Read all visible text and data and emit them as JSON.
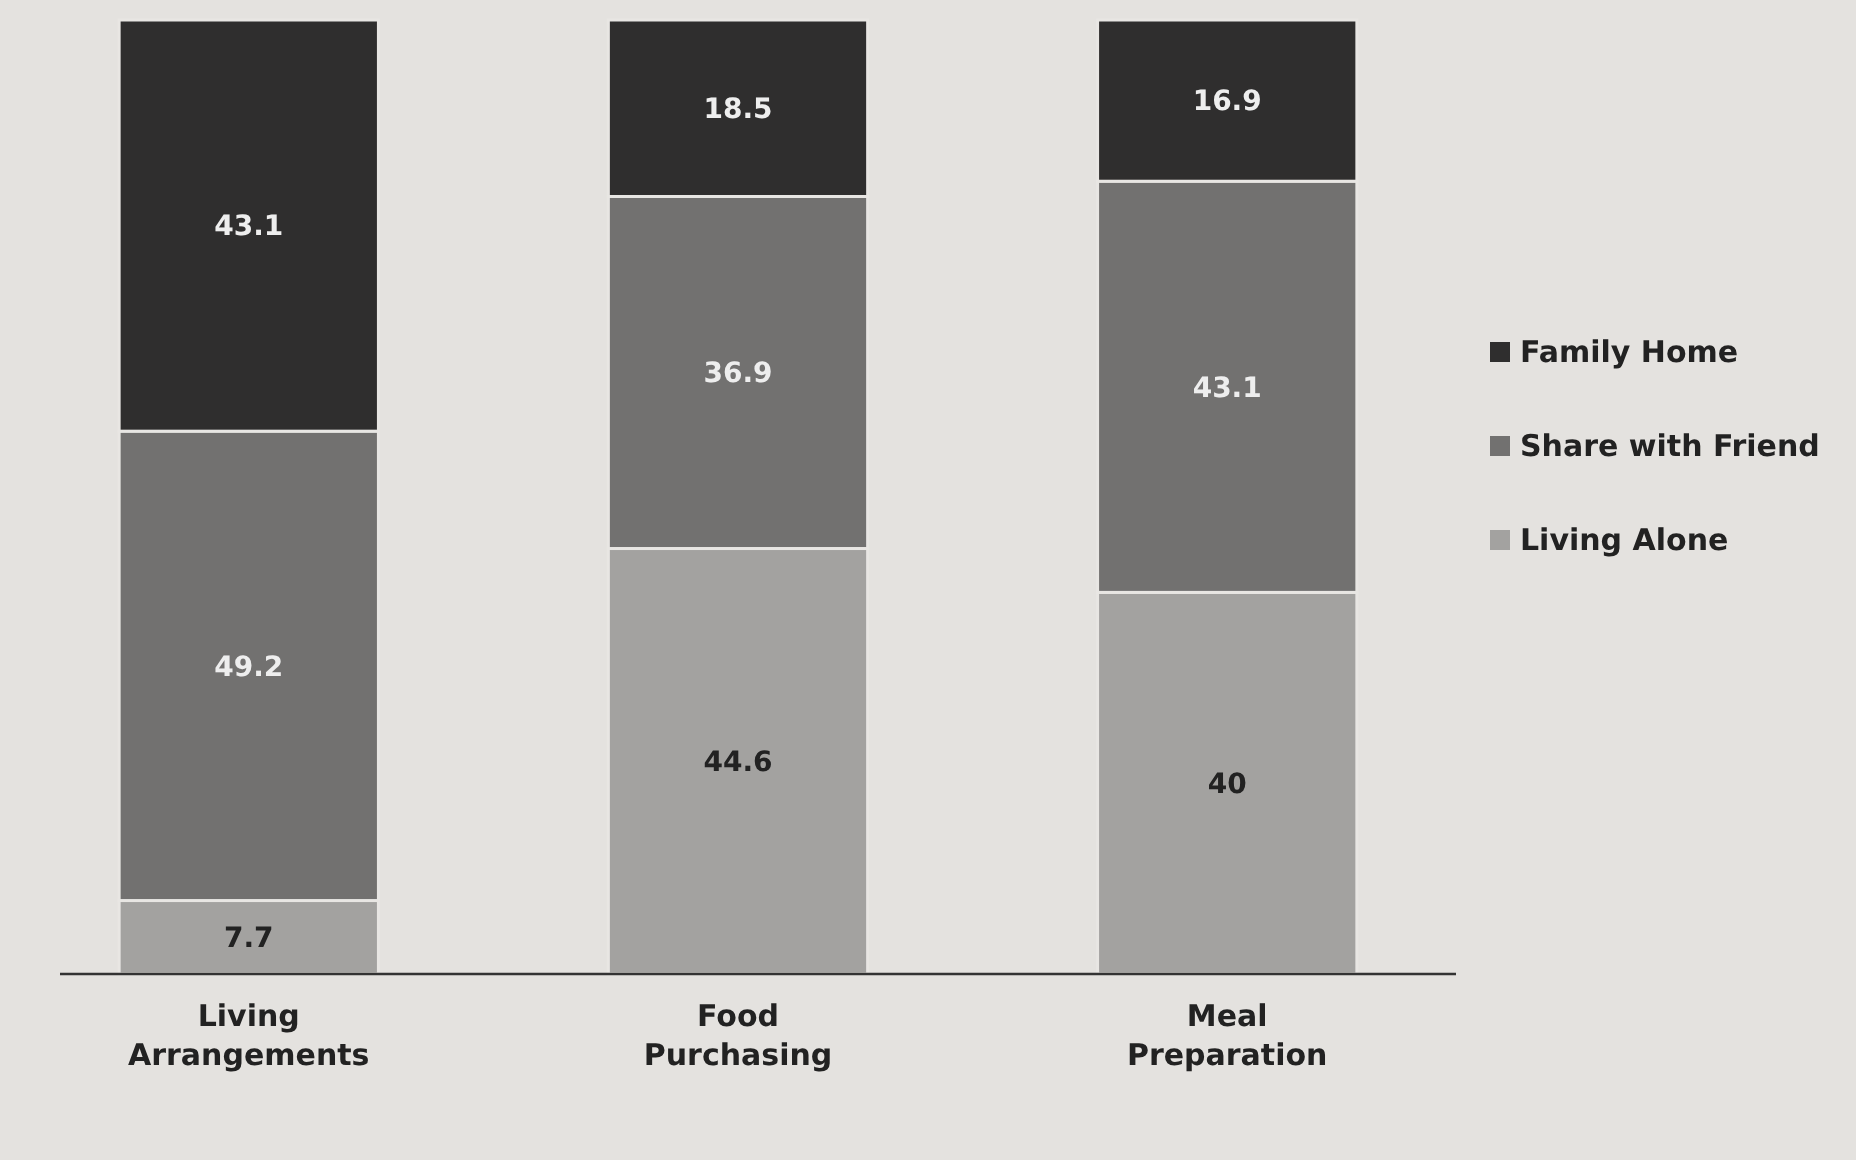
{
  "chart_data": {
    "type": "bar",
    "stacked": true,
    "data_labels": true,
    "legend": "right",
    "categories": [
      "Living\nArrangements",
      "Food\nPurchasing",
      "Meal\nPreparation"
    ],
    "series": [
      {
        "name": "Living Alone",
        "color": "#a3a2a0",
        "values": [
          7.7,
          44.6,
          40
        ]
      },
      {
        "name": "Share with Friend",
        "color": "#727170",
        "values": [
          49.2,
          36.9,
          43.1
        ]
      },
      {
        "name": "Family Home",
        "color": "#2f2e2e",
        "values": [
          43.1,
          18.5,
          16.9
        ]
      }
    ]
  }
}
